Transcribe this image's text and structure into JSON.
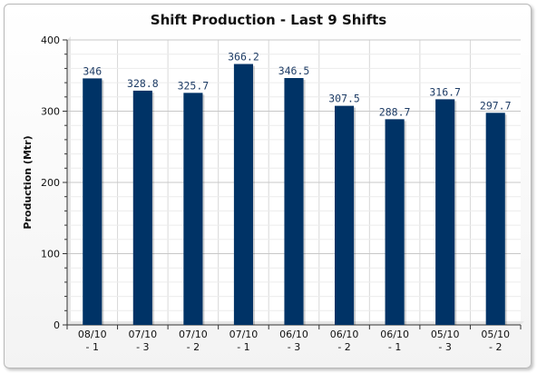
{
  "chart_data": {
    "type": "bar",
    "title": "Shift Production - Last 9 Shifts",
    "ylabel": "Production (Mtr)",
    "xlabel": "",
    "ylim": [
      0,
      400
    ],
    "yticks": [
      "0",
      "100",
      "200",
      "300",
      "400"
    ],
    "categories": [
      [
        "08/10",
        "- 1"
      ],
      [
        "07/10",
        "- 3"
      ],
      [
        "07/10",
        "- 2"
      ],
      [
        "07/10",
        "- 1"
      ],
      [
        "06/10",
        "- 3"
      ],
      [
        "06/10",
        "- 2"
      ],
      [
        "06/10",
        "- 1"
      ],
      [
        "05/10",
        "- 3"
      ],
      [
        "05/10",
        "- 2"
      ]
    ],
    "values": [
      346,
      328.8,
      325.7,
      366.2,
      346.5,
      307.5,
      288.7,
      316.7,
      297.7
    ],
    "value_labels": [
      "346",
      "328.8",
      "325.7",
      "366.2",
      "346.5",
      "307.5",
      "288.7",
      "316.7",
      "297.7"
    ],
    "grid": true,
    "legend": "none",
    "bar_color": "#003366",
    "grid_color": "#d8d8d8"
  }
}
